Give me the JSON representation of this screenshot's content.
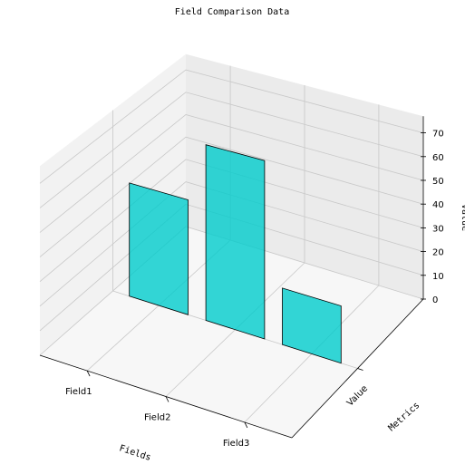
{
  "chart_data": {
    "type": "bar3d",
    "title": "Field Comparison Data",
    "categories": [
      "Field1",
      "Field2",
      "Field3"
    ],
    "values": [
      48,
      73,
      23
    ],
    "color": "#00cccc",
    "xlabel": "Fields",
    "ylabel": "Metrics",
    "zlabel": "Value",
    "ycategories": [
      "Value"
    ],
    "zlim": [
      0,
      77
    ],
    "zticks": [
      0,
      10,
      20,
      30,
      40,
      50,
      60,
      70
    ],
    "grid": true
  }
}
